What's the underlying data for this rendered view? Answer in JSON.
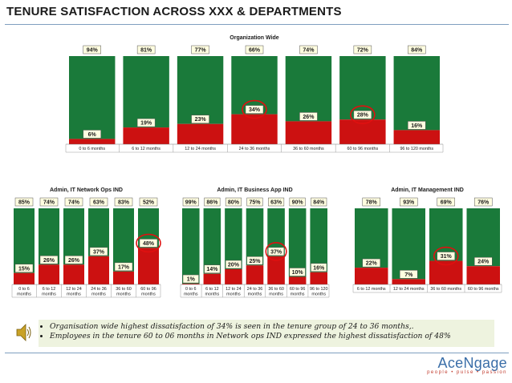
{
  "title": "TENURE SATISFACTION ACROSS XXX & DEPARTMENTS",
  "notes": [
    "Organisation wide highest dissatisfaction of 34% is seen in the tenure group of 24 to 36 months,.",
    "Employees in the tenure 60 to 06 months in Network ops IND expressed the highest dissatisfaction of 48%"
  ],
  "logo": {
    "name": "AceNgage",
    "tagline": "people • pulse • passion"
  },
  "colors": {
    "satisfied": "#1a7a3a",
    "dissatisfied": "#cc1111",
    "label_bg": "#fffde0",
    "highlight": "#e01010"
  },
  "icons": {
    "speaker": "speaker-icon"
  },
  "chart_data": [
    {
      "type": "bar",
      "stacked": true,
      "title": "Organization Wide",
      "categories": [
        "0 to 6 months",
        "6 to 12 months",
        "12 to 24 months",
        "24 to 36 months",
        "36 to 60 months",
        "60 to 96 months",
        "96 to 120 months"
      ],
      "top_labels": [
        "94%",
        "81%",
        "77%",
        "66%",
        "74%",
        "72%",
        "84%"
      ],
      "bottom_labels": [
        "6%",
        "19%",
        "23%",
        "34%",
        "26%",
        "28%",
        "16%"
      ],
      "series": [
        {
          "values": [
            6,
            19,
            23,
            34,
            26,
            28,
            16
          ]
        },
        {
          "values": [
            94,
            81,
            77,
            66,
            74,
            72,
            84
          ]
        }
      ],
      "highlight": [
        3,
        5
      ],
      "ylim": [
        0,
        100
      ]
    },
    {
      "type": "bar",
      "stacked": true,
      "title": "Admin, IT Network Ops IND",
      "categories": [
        "0 to 6 months",
        "6 to 12 months",
        "12 to 24 months",
        "24 to 36 months",
        "36 to 60 months",
        "60 to 96 months"
      ],
      "top_labels": [
        "85%",
        "74%",
        "74%",
        "63%",
        "83%",
        "52%"
      ],
      "bottom_labels": [
        "15%",
        "26%",
        "26%",
        "37%",
        "17%",
        "48%"
      ],
      "series": [
        {
          "values": [
            15,
            26,
            26,
            37,
            17,
            48
          ]
        },
        {
          "values": [
            85,
            74,
            74,
            63,
            83,
            52
          ]
        }
      ],
      "highlight": [
        5
      ],
      "ylim": [
        0,
        100
      ]
    },
    {
      "type": "bar",
      "stacked": true,
      "title": "Admin, IT Business App IND",
      "categories": [
        "0 to 6 months",
        "6 to 12 months",
        "12 to 24 months",
        "24 to 36 months",
        "36 to 60 months",
        "60 to 96 months",
        "96 to 120 months"
      ],
      "top_labels": [
        "99%",
        "86%",
        "80%",
        "75%",
        "63%",
        "90%",
        "84%"
      ],
      "bottom_labels": [
        "1%",
        "14%",
        "20%",
        "25%",
        "37%",
        "10%",
        "16%"
      ],
      "series": [
        {
          "values": [
            1,
            14,
            20,
            25,
            37,
            10,
            16
          ]
        },
        {
          "values": [
            99,
            86,
            80,
            75,
            63,
            90,
            84
          ]
        }
      ],
      "highlight": [
        4
      ],
      "ylim": [
        0,
        100
      ]
    },
    {
      "type": "bar",
      "stacked": true,
      "title": "Admin, IT Management IND",
      "categories": [
        "6 to 12 months",
        "12 to 24 months",
        "36 to 60 months",
        "60 to 96 months"
      ],
      "top_labels": [
        "78%",
        "93%",
        "69%",
        "76%"
      ],
      "bottom_labels": [
        "22%",
        "7%",
        "31%",
        "24%"
      ],
      "series": [
        {
          "values": [
            22,
            7,
            31,
            24
          ]
        },
        {
          "values": [
            78,
            93,
            69,
            76
          ]
        }
      ],
      "highlight": [
        2
      ],
      "ylim": [
        0,
        100
      ]
    }
  ]
}
